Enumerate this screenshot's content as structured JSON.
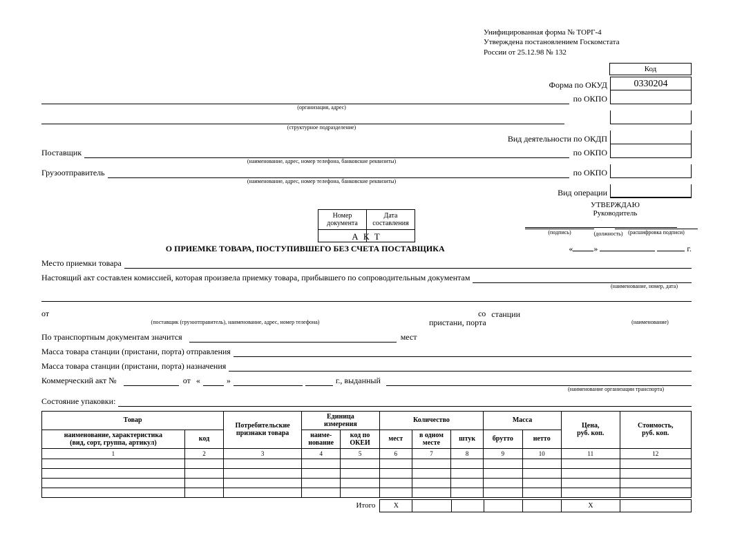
{
  "header_note": {
    "line1": "Унифицированная форма № ТОРГ-4",
    "line2": "Утверждена постановлением Госкомстата",
    "line3": "России от 25.12.98 № 132"
  },
  "code_box": {
    "header": "Код",
    "okud_label": "Форма по ОКУД",
    "okud_value": "0330204",
    "okpo1_label": "по ОКПО",
    "okpo1_value": "",
    "okpo2_label": "по ОКПО",
    "okpo2_value": "",
    "okdp_label": "Вид деятельности по ОКДП",
    "okdp_value": "",
    "okpo3_label": "по ОКПО",
    "okpo3_value": "",
    "okpo4_label": "по ОКПО",
    "okpo4_value": "",
    "oper_label": "Вид операции",
    "oper_value": ""
  },
  "captions": {
    "org": "(организация, адрес)",
    "struct": "(структурное подразделение)",
    "supplier_hint": "(наименование, адрес, номер телефона, банковские реквизиты)",
    "sender_hint": "(наименование, адрес, номер телефона, банковские реквизиты)",
    "position": "(должность)",
    "signature": "(подпись)",
    "decipher": "(расшифровка подписи)",
    "doc_name_hint": "(наименование, номер, дата)",
    "from_hint": "(поставщик (грузоотправитель), наименование, адрес, номер телефона)",
    "station_hint": "(наименование)",
    "transport_org_hint": "(наименование организации транспорта)"
  },
  "labels": {
    "supplier": "Поставщик",
    "sender": "Грузоотправитель",
    "approve": "УТВЕРЖДАЮ",
    "manager": "Руководитель",
    "act": "А К Т",
    "act_sub": "О ПРИЕМКЕ ТОВАРА, ПОСТУПИВШЕГО БЕЗ СЧЕТА ПОСТАВЩИКА",
    "doc_num": "Номер\nдокумента",
    "doc_date": "Дата\nсоставления",
    "place": "Место приемки товара",
    "commission": "Настоящий акт составлен комиссией, которая произвела приемку товара, прибывшего по сопроводительным документам",
    "from": "от",
    "with": "со",
    "station": "станции",
    "pier": "пристани, порта",
    "transport_docs": "По транспортным документам значится",
    "places": "мест",
    "mass_depart": "Масса товара станции (пристани, порта) отправления",
    "mass_dest": "Масса товара станции (пристани, порта) назначения",
    "commercial_act": "Коммерческий акт №",
    "from_date": "от",
    "issued": "г., выданный",
    "year_g": "г.",
    "pack_state": "Состояние упаковки:",
    "total": "Итого",
    "x": "X"
  },
  "date_block": {
    "quote1": "«",
    "quote2": "»"
  },
  "table": {
    "headers": {
      "product": "Товар",
      "name_char": "наименование, характеристика\n(вид, сорт, группа, артикул)",
      "code": "код",
      "consumer": "Потребительские\nпризнаки товара",
      "unit": "Единица\nизмерения",
      "unit_name": "наиме-\nнование",
      "okei": "код по\nОКЕИ",
      "quantity": "Количество",
      "places_h": "мест",
      "in_one": "в одном\nместе",
      "pieces": "штук",
      "mass": "Масса",
      "gross": "брутто",
      "net": "нетто",
      "price": "Цена,\nруб. коп.",
      "cost": "Стоимость,\nруб. коп."
    },
    "col_nums": [
      "1",
      "2",
      "3",
      "4",
      "5",
      "6",
      "7",
      "8",
      "9",
      "10",
      "11",
      "12"
    ],
    "col_widths_pct": [
      22,
      6,
      12,
      6,
      6,
      5,
      6,
      5,
      6,
      6,
      9,
      11
    ],
    "rows": [
      [
        "",
        "",
        "",
        "",
        "",
        "",
        "",
        "",
        "",
        "",
        "",
        ""
      ],
      [
        "",
        "",
        "",
        "",
        "",
        "",
        "",
        "",
        "",
        "",
        "",
        ""
      ],
      [
        "",
        "",
        "",
        "",
        "",
        "",
        "",
        "",
        "",
        "",
        "",
        ""
      ],
      [
        "",
        "",
        "",
        "",
        "",
        "",
        "",
        "",
        "",
        "",
        "",
        ""
      ]
    ]
  },
  "style": {
    "bg": "#ffffff",
    "fg": "#000000",
    "font_family": "Times New Roman",
    "base_font_pt": 12,
    "small_font_pt": 8
  }
}
